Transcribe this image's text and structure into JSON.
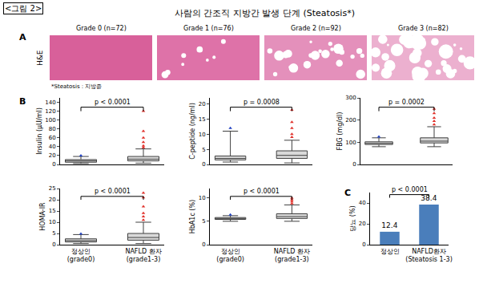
{
  "figure_label": "<그림 2>",
  "panel_labels": [
    "A",
    "B",
    "C"
  ],
  "panel_a": {
    "title": "사람의 간조직 지방간 발생 단계 (Steatosis*)",
    "tiles": [
      "Grade 0 (n=72)",
      "Grade 1 (n=76)",
      "Grade 2 (n=92)",
      "Grade 3 (n=82)"
    ],
    "stain": "H&E",
    "footnote": "*Steatosis : 지방증"
  },
  "chart_data": [
    {
      "type": "box",
      "y_label": "Insulin (μU/ml)",
      "categories": [
        "정상인 (grade0)",
        "NAFLD 환자 (grade1-3)"
      ],
      "boxes": [
        {
          "q1": 5,
          "median": 8,
          "q3": 11,
          "lowerfence": 2,
          "upperfence": 18,
          "outliers": [
            20
          ],
          "color": "#2040c0"
        },
        {
          "q1": 8,
          "median": 12,
          "q3": 18,
          "lowerfence": 3,
          "upperfence": 35,
          "outliers": [
            38,
            42,
            50,
            60,
            75,
            120
          ],
          "color": "#e0302a"
        }
      ],
      "ylim": [
        0,
        150
      ],
      "yticks": [
        0,
        20,
        40,
        60,
        80,
        100,
        120,
        140
      ],
      "annotations": [
        "p < 0.0001"
      ],
      "tick_labels": "y"
    },
    {
      "type": "box",
      "y_label": "C-peptide (ng/ml)",
      "categories": [
        "정상인 (grade0)",
        "NAFLD 환자 (grade1-3)"
      ],
      "boxes": [
        {
          "q1": 1.5,
          "median": 2,
          "q3": 2.8,
          "lowerfence": 0.8,
          "upperfence": 11,
          "outliers": [
            12
          ],
          "color": "#2040c0"
        },
        {
          "q1": 2,
          "median": 3,
          "q3": 4.5,
          "lowerfence": 0.5,
          "upperfence": 8,
          "outliers": [
            9,
            10,
            12,
            14,
            18
          ],
          "color": "#e0302a"
        }
      ],
      "ylim": [
        0,
        22
      ],
      "yticks": [
        0,
        5,
        10,
        15,
        20
      ],
      "annotations": [
        "p = 0.0008"
      ],
      "tick_labels": "y"
    },
    {
      "type": "box",
      "y_label": "FBG (mg/dl)",
      "categories": [
        "정상인 (grade0)",
        "NAFLD 환자 (grade1-3)"
      ],
      "boxes": [
        {
          "q1": 90,
          "median": 95,
          "q3": 102,
          "lowerfence": 80,
          "upperfence": 120,
          "outliers": [
            125
          ],
          "color": "#2040c0"
        },
        {
          "q1": 97,
          "median": 105,
          "q3": 120,
          "lowerfence": 80,
          "upperfence": 170,
          "outliers": [
            180,
            195,
            210,
            230,
            250
          ],
          "color": "#e0302a"
        }
      ],
      "ylim": [
        0,
        300
      ],
      "yticks": [
        0,
        100,
        200,
        300
      ],
      "annotations": [
        "p = 0.0002"
      ],
      "tick_labels": "y"
    },
    {
      "type": "box",
      "y_label": "HOMA-IR",
      "categories": [
        "정상인 (grade0)",
        "NAFLD 환자 (grade1-3)"
      ],
      "boxes": [
        {
          "q1": 1.2,
          "median": 1.8,
          "q3": 2.6,
          "lowerfence": 0.5,
          "upperfence": 4.5,
          "outliers": [
            4.8
          ],
          "color": "#2040c0"
        },
        {
          "q1": 2,
          "median": 3.2,
          "q3": 5,
          "lowerfence": 0.5,
          "upperfence": 10,
          "outliers": [
            11,
            12.5,
            14,
            17,
            21,
            23
          ],
          "color": "#e0302a"
        }
      ],
      "ylim": [
        0,
        25
      ],
      "yticks": [
        0,
        5,
        10,
        15,
        20,
        25
      ],
      "annotations": [
        "p < 0.0001"
      ]
    },
    {
      "type": "box",
      "y_label": "HbA1c (%)",
      "categories": [
        "정상인 (grade0)",
        "NAFLD 환자 (grade1-3)"
      ],
      "boxes": [
        {
          "q1": 5.4,
          "median": 5.6,
          "q3": 5.8,
          "lowerfence": 5.0,
          "upperfence": 6.2,
          "outliers": [
            6.4
          ],
          "color": "#2040c0"
        },
        {
          "q1": 5.6,
          "median": 6,
          "q3": 6.6,
          "lowerfence": 5,
          "upperfence": 8.5,
          "outliers": [
            8.8,
            9.2,
            9.6,
            10
          ],
          "color": "#e0302a"
        }
      ],
      "ylim": [
        0,
        12
      ],
      "yticks": [
        0,
        5,
        10
      ],
      "annotations": [
        "p < 0.0001"
      ]
    },
    {
      "type": "bar",
      "y_label": "당뇨 (%)",
      "categories": [
        "정상인",
        "NAFLD환자 (Steatosis 1-3)"
      ],
      "values": [
        12.4,
        38.4
      ],
      "color": "#4a7ebb",
      "data_labels": true,
      "ylim": [
        0,
        50
      ],
      "yticks": [
        0,
        20,
        40
      ],
      "annotations": [
        "p < 0.0001"
      ]
    }
  ]
}
